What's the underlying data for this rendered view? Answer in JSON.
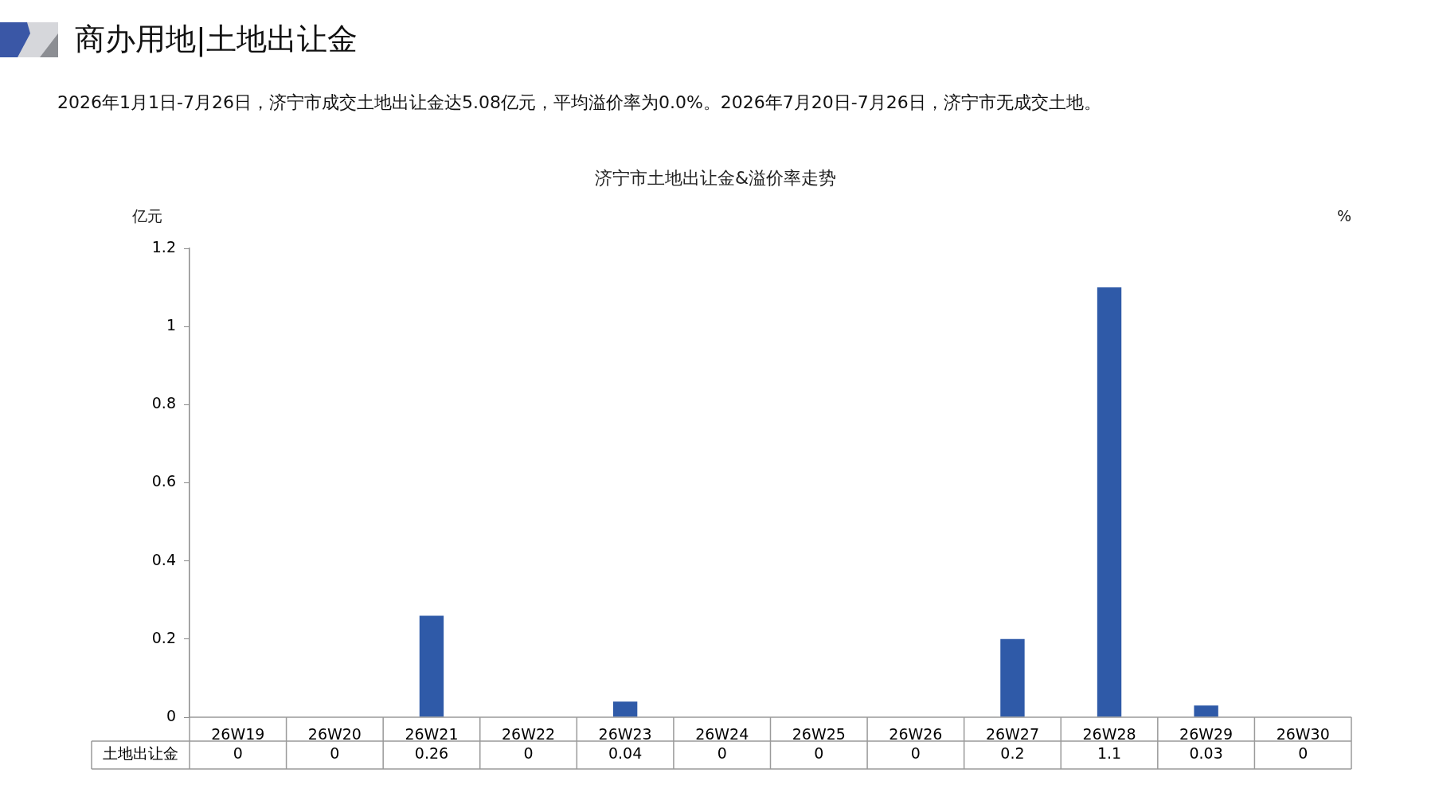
{
  "chart_data": {
    "type": "bar",
    "title": "济宁市土地出让金&溢价率走势",
    "ylabel": "亿元",
    "y2label": "%",
    "annotations": [
      "商办用地|土地出让金",
      "2026年1月1日-7月26日，济宁市成交土地出让金达5.08亿元，平均溢价率为0.0%。2026年7月20日-7月26日，济宁市无成交土地。"
    ],
    "categories": [
      "26W19",
      "26W20",
      "26W21",
      "26W22",
      "26W23",
      "26W24",
      "26W25",
      "26W26",
      "26W27",
      "26W28",
      "26W29",
      "26W30"
    ],
    "series": [
      {
        "name": "土地出让金",
        "color": "#2f5aa8",
        "values": [
          0,
          0,
          0.26,
          0,
          0.04,
          0,
          0,
          0,
          0.2,
          1.1,
          0.03,
          0
        ]
      }
    ],
    "ylim": [
      0,
      1.2
    ],
    "yticks": [
      0,
      0.2,
      0.4,
      0.6,
      0.8,
      1,
      1.2
    ],
    "data_labels": true
  }
}
